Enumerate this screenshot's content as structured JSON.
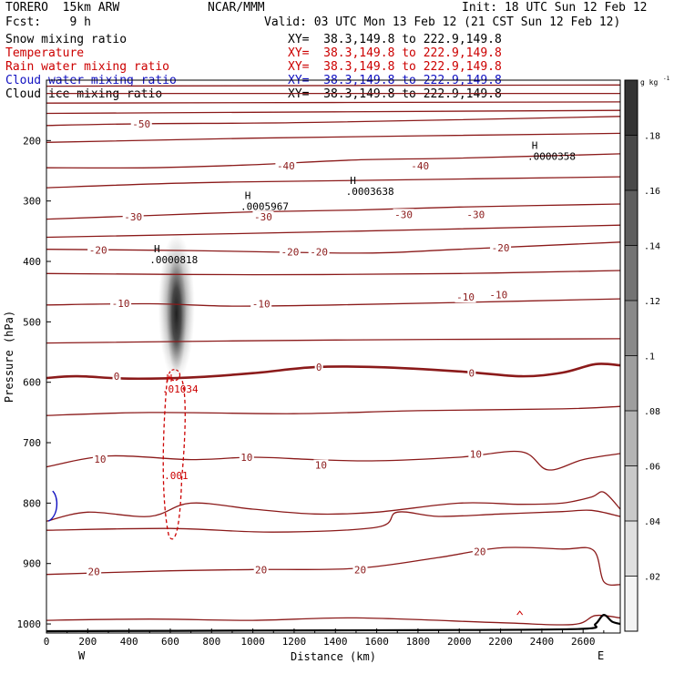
{
  "header": {
    "model": "TORERO  15km ARW",
    "center": "NCAR/MMM",
    "init": "Init: 18 UTC Sun 12 Feb 12",
    "fcst": "Fcst:    9 h",
    "valid": "Valid: 03 UTC Mon 13 Feb 12 (21 CST Sun 12 Feb 12)"
  },
  "legend_fields": [
    {
      "name": "Snow mixing ratio",
      "xy": "XY=  38.3,149.8 to 222.9,149.8",
      "color": "#000000"
    },
    {
      "name": "Temperature",
      "xy": "XY=  38.3,149.8 to 222.9,149.8",
      "color": "#cc0000"
    },
    {
      "name": "Rain water mixing ratio",
      "xy": "XY=  38.3,149.8 to 222.9,149.8",
      "color": "#cc0000"
    },
    {
      "name": "Cloud water mixing ratio",
      "xy": "XY=  38.3,149.8 to 222.9,149.8",
      "color": "#1010c0"
    },
    {
      "name": "Cloud ice mixing ratio",
      "xy": "XY=  38.3,149.8 to 222.9,149.8",
      "color": "#000000"
    }
  ],
  "chart_data": {
    "type": "cross-section contour",
    "xlabel": "Distance (km)",
    "ylabel": "Pressure (hPa)",
    "xlim": [
      0,
      2780
    ],
    "ylim": [
      1015,
      100
    ],
    "x_ticks": [
      0,
      200,
      400,
      600,
      800,
      1000,
      1200,
      1400,
      1600,
      1800,
      2000,
      2200,
      2400,
      2600
    ],
    "y_ticks": [
      200,
      300,
      400,
      500,
      600,
      700,
      800,
      900,
      1000
    ],
    "x_end_labels": {
      "left": "W",
      "right": "E"
    },
    "colorbar": {
      "unit": "g kg",
      "unit_exp": "-1",
      "ticks": [
        0.02,
        0.04,
        0.06,
        0.08,
        0.1,
        0.12,
        0.14,
        0.16,
        0.18
      ],
      "tick_labels": [
        ".02",
        ".04",
        ".06",
        ".08",
        ".1",
        ".12",
        ".14",
        ".16",
        ".18"
      ],
      "range": [
        0,
        0.2
      ]
    },
    "temperature_contours": {
      "color": "#8b1a1a",
      "lines": [
        {
          "T": -60,
          "p": [
            [
              0,
              110
            ],
            [
              2780,
              108
            ]
          ]
        },
        {
          "T": -60,
          "p": [
            [
              0,
              122
            ],
            [
              2780,
              122
            ]
          ]
        },
        {
          "T": -60,
          "p": [
            [
              0,
              138
            ],
            [
              2780,
              136
            ]
          ]
        },
        {
          "T": -55,
          "p": [
            [
              0,
              155
            ],
            [
              2780,
              150
            ]
          ]
        },
        {
          "T": -50,
          "p": [
            [
              0,
              175
            ],
            [
              500,
              172
            ],
            [
              1300,
              170
            ],
            [
              2780,
              160
            ]
          ]
        },
        {
          "T": -45,
          "p": [
            [
              0,
              203
            ],
            [
              1000,
              196
            ],
            [
              2780,
              188
            ]
          ]
        },
        {
          "T": -40,
          "p": [
            [
              0,
              245
            ],
            [
              500,
              245
            ],
            [
              1000,
              240
            ],
            [
              1500,
              232
            ],
            [
              2000,
              229
            ],
            [
              2780,
              222
            ]
          ]
        },
        {
          "T": -35,
          "p": [
            [
              0,
              278
            ],
            [
              700,
              270
            ],
            [
              1500,
              266
            ],
            [
              2780,
              260
            ]
          ]
        },
        {
          "T": -30,
          "p": [
            [
              0,
              330
            ],
            [
              500,
              324
            ],
            [
              1000,
              318
            ],
            [
              1500,
              315
            ],
            [
              2000,
              310
            ],
            [
              2780,
              305
            ]
          ]
        },
        {
          "T": -25,
          "p": [
            [
              0,
              360
            ],
            [
              1500,
              350
            ],
            [
              2780,
              340
            ]
          ]
        },
        {
          "T": -20,
          "p": [
            [
              0,
              380
            ],
            [
              700,
              382
            ],
            [
              1200,
              385
            ],
            [
              1600,
              386
            ],
            [
              2000,
              380
            ],
            [
              2780,
              368
            ]
          ]
        },
        {
          "T": -15,
          "p": [
            [
              0,
              420
            ],
            [
              1000,
              422
            ],
            [
              2000,
              420
            ],
            [
              2780,
              415
            ]
          ]
        },
        {
          "T": -10,
          "p": [
            [
              0,
              472
            ],
            [
              500,
              470
            ],
            [
              900,
              474
            ],
            [
              1400,
              472
            ],
            [
              2000,
              468
            ],
            [
              2780,
              462
            ]
          ]
        },
        {
          "T": -5,
          "p": [
            [
              0,
              535
            ],
            [
              1400,
              530
            ],
            [
              2780,
              528
            ]
          ]
        },
        {
          "T": 0,
          "p": [
            [
              0,
              593
            ],
            [
              150,
              590
            ],
            [
              400,
              594
            ],
            [
              700,
              592
            ],
            [
              1000,
              585
            ],
            [
              1300,
              575
            ],
            [
              1600,
              575
            ],
            [
              2000,
              582
            ],
            [
              2300,
              590
            ],
            [
              2500,
              584
            ],
            [
              2660,
              570
            ],
            [
              2780,
              572
            ]
          ],
          "bold": true
        },
        {
          "T": 5,
          "p": [
            [
              0,
              655
            ],
            [
              500,
              650
            ],
            [
              1200,
              652
            ],
            [
              1800,
              647
            ],
            [
              2500,
              644
            ],
            [
              2780,
              640
            ]
          ]
        },
        {
          "T": 10,
          "p": [
            [
              0,
              740
            ],
            [
              300,
              722
            ],
            [
              700,
              728
            ],
            [
              1000,
              724
            ],
            [
              1300,
              728
            ],
            [
              1600,
              730
            ],
            [
              2000,
              724
            ],
            [
              2300,
              715
            ],
            [
              2430,
              745
            ],
            [
              2600,
              728
            ],
            [
              2780,
              718
            ]
          ]
        },
        {
          "T": 15,
          "p": [
            [
              0,
              830
            ],
            [
              200,
              815
            ],
            [
              500,
              822
            ],
            [
              700,
              800
            ],
            [
              1000,
              810
            ],
            [
              1300,
              818
            ],
            [
              1600,
              815
            ],
            [
              2000,
              800
            ],
            [
              2300,
              802
            ],
            [
              2500,
              800
            ],
            [
              2640,
              790
            ],
            [
              2700,
              782
            ],
            [
              2780,
              810
            ]
          ]
        },
        {
          "T": 15,
          "p": [
            [
              0,
              845
            ],
            [
              600,
              842
            ],
            [
              1100,
              848
            ],
            [
              1600,
              840
            ],
            [
              1700,
              815
            ],
            [
              1900,
              822
            ],
            [
              2200,
              818
            ],
            [
              2500,
              814
            ],
            [
              2640,
              812
            ],
            [
              2780,
              822
            ]
          ]
        },
        {
          "T": 20,
          "p": [
            [
              0,
              918
            ],
            [
              600,
              912
            ],
            [
              1000,
              910
            ],
            [
              1500,
              908
            ],
            [
              1900,
              890
            ],
            [
              2200,
              874
            ],
            [
              2500,
              876
            ],
            [
              2650,
              878
            ],
            [
              2700,
              930
            ],
            [
              2780,
              935
            ]
          ]
        },
        {
          "T": 25,
          "p": [
            [
              0,
              994
            ],
            [
              500,
              992
            ],
            [
              1000,
              994
            ],
            [
              1500,
              990
            ],
            [
              2200,
              998
            ],
            [
              2550,
              1001
            ],
            [
              2660,
              986
            ],
            [
              2780,
              990
            ]
          ]
        }
      ],
      "labels": [
        {
          "text": "-50",
          "x": 460,
          "p": 172
        },
        {
          "text": "-40",
          "x": 1160,
          "p": 242
        },
        {
          "text": "-40",
          "x": 1810,
          "p": 242
        },
        {
          "text": "-30",
          "x": 420,
          "p": 326
        },
        {
          "text": "-30",
          "x": 1050,
          "p": 326
        },
        {
          "text": "-30",
          "x": 1730,
          "p": 322
        },
        {
          "text": "-30",
          "x": 2080,
          "p": 322
        },
        {
          "text": "-20",
          "x": 250,
          "p": 381
        },
        {
          "text": "-20",
          "x": 1180,
          "p": 384
        },
        {
          "text": "-20",
          "x": 1320,
          "p": 384
        },
        {
          "text": "-20",
          "x": 2200,
          "p": 377
        },
        {
          "text": "-10",
          "x": 360,
          "p": 469
        },
        {
          "text": "-10",
          "x": 1040,
          "p": 470
        },
        {
          "text": "-10",
          "x": 2030,
          "p": 459
        },
        {
          "text": "-10",
          "x": 2190,
          "p": 455
        },
        {
          "text": "0",
          "x": 340,
          "p": 590
        },
        {
          "text": "0",
          "x": 1320,
          "p": 575
        },
        {
          "text": "0",
          "x": 2060,
          "p": 585
        },
        {
          "text": "10",
          "x": 260,
          "p": 727
        },
        {
          "text": "10",
          "x": 970,
          "p": 724
        },
        {
          "text": "10",
          "x": 1330,
          "p": 737
        },
        {
          "text": "10",
          "x": 2080,
          "p": 719
        },
        {
          "text": "20",
          "x": 230,
          "p": 913
        },
        {
          "text": "20",
          "x": 1040,
          "p": 910
        },
        {
          "text": "20",
          "x": 1520,
          "p": 910
        },
        {
          "text": "20",
          "x": 2100,
          "p": 880
        }
      ]
    },
    "maxima": [
      {
        "label": "H",
        "value": ".0000818",
        "x": 500,
        "p": 403
      },
      {
        "label": "H",
        "value": ".0005967",
        "x": 940,
        "p": 315
      },
      {
        "label": "H",
        "value": ".0003638",
        "x": 1450,
        "p": 290
      },
      {
        "label": "H",
        "value": ".0000358",
        "x": 2330,
        "p": 232
      },
      {
        "label": "H",
        "value": ".01034",
        "x": 560,
        "p": 617,
        "color": "#cc0000"
      }
    ],
    "rain_contour": {
      "level": ".001",
      "label_x": 570,
      "label_p": 760,
      "color": "#cc0000"
    },
    "shaded_snow": {
      "center_x": 630,
      "p_top": 365,
      "p_bottom": 585,
      "max": 0.17
    }
  }
}
